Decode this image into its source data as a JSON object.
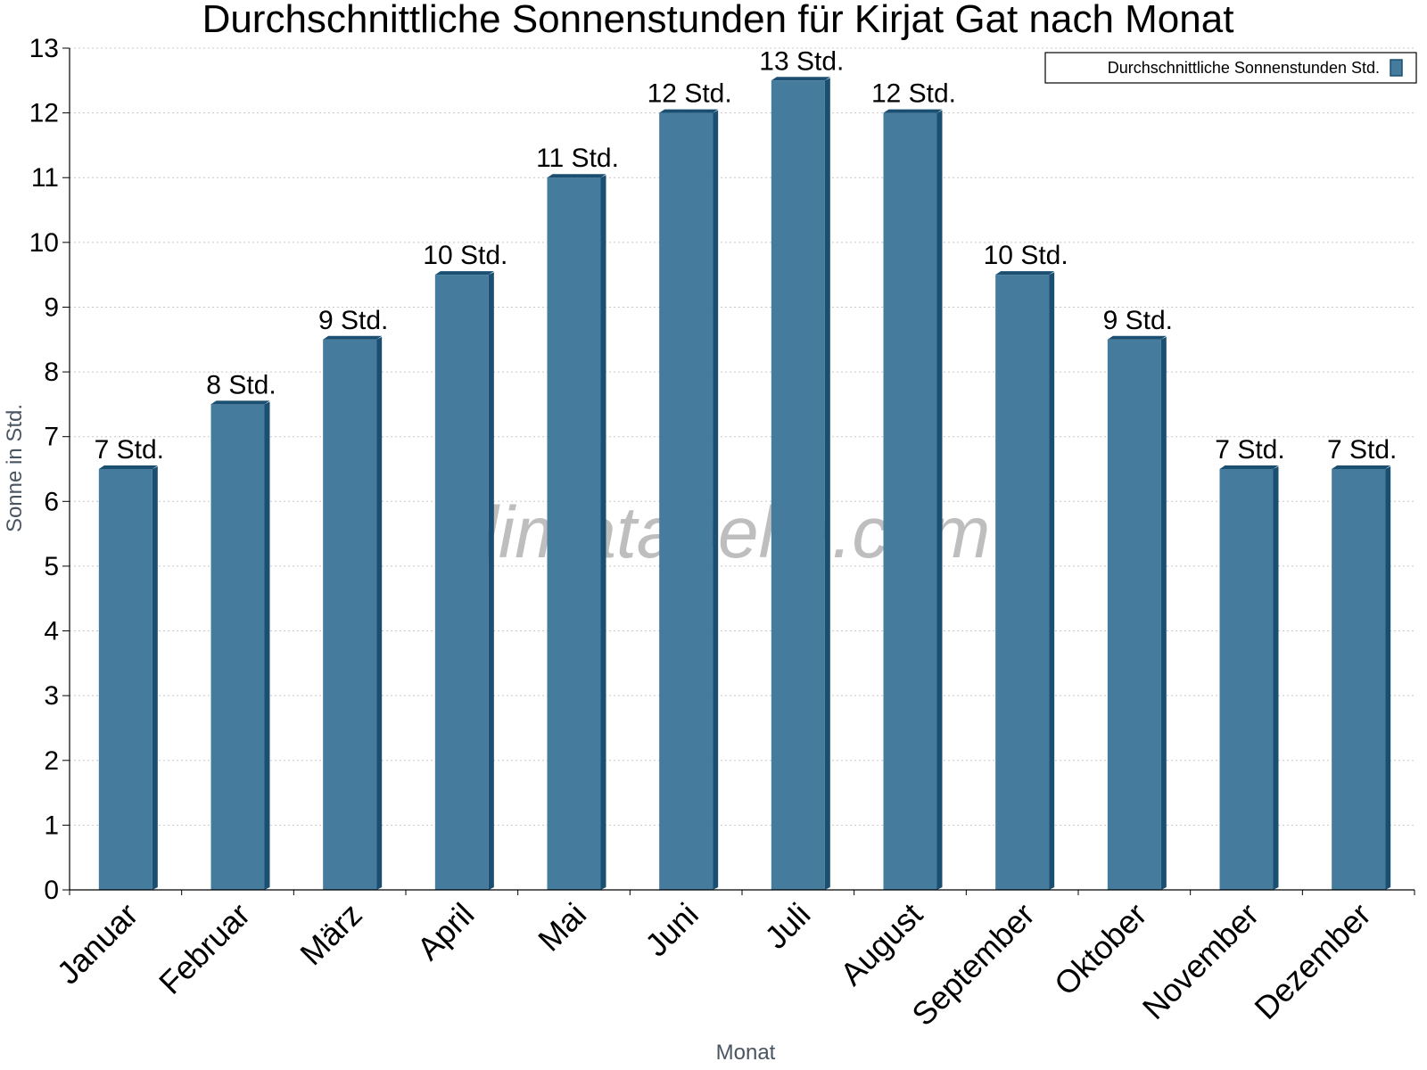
{
  "chart_data": {
    "type": "bar",
    "title": "Durchschnittliche Sonnenstunden für Kirjat Gat nach Monat",
    "xlabel": "Monat",
    "ylabel": "Sonne in Std.",
    "ylim": [
      0,
      13
    ],
    "yticks": [
      0,
      1,
      2,
      3,
      4,
      5,
      6,
      7,
      8,
      9,
      10,
      11,
      12,
      13
    ],
    "grid": true,
    "legend_position": "top-right",
    "categories": [
      "Januar",
      "Februar",
      "März",
      "April",
      "Mai",
      "Juni",
      "Juli",
      "August",
      "September",
      "Oktober",
      "November",
      "Dezember"
    ],
    "series": [
      {
        "name": "Durchschnittliche Sonnenstunden Std.",
        "values": [
          6.5,
          7.5,
          8.5,
          9.5,
          11,
          12,
          12.5,
          12,
          9.5,
          8.5,
          6.5,
          6.5
        ],
        "labels": [
          "7 Std.",
          "8 Std.",
          "9 Std.",
          "10 Std.",
          "11 Std.",
          "12 Std.",
          "13 Std.",
          "12 Std.",
          "10 Std.",
          "9 Std.",
          "7 Std.",
          "7 Std."
        ],
        "color": "#457b9d",
        "edge_color": "#1b4f72"
      }
    ]
  },
  "watermark": "klimatabelle.com"
}
